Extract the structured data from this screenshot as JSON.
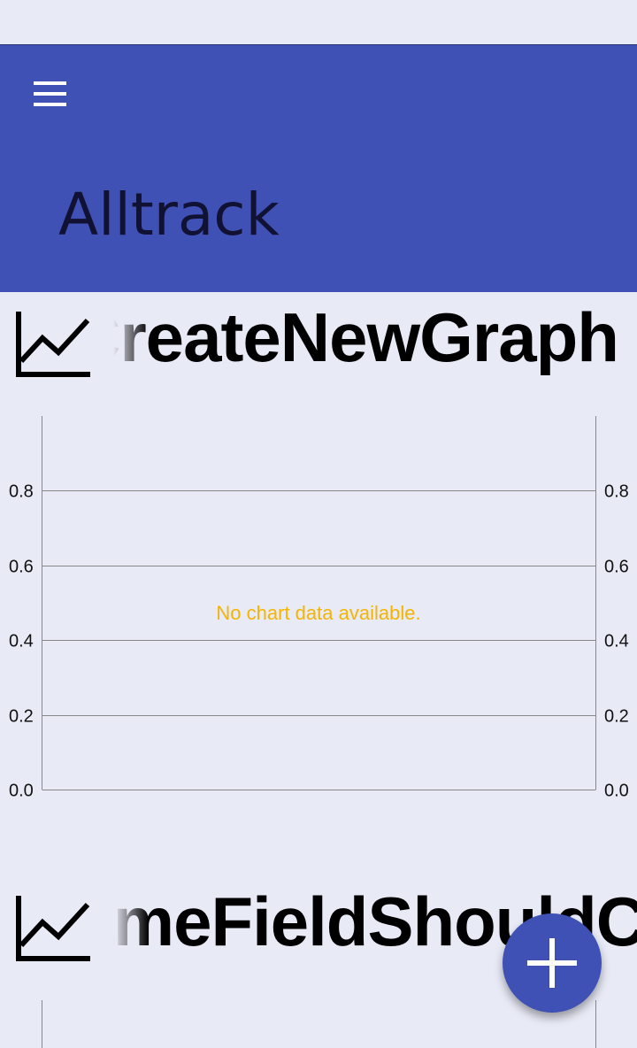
{
  "app_bar": {
    "title": "Alltrack",
    "menu_icon": "hamburger-menu-icon",
    "color": "#3f51b5"
  },
  "cards": [
    {
      "icon": "line-chart-icon",
      "title": "CreateNewGraph",
      "chart_data": {
        "type": "line",
        "series": [],
        "no_data_text": "No chart data available.",
        "no_data_color": "#f4b400",
        "ylim": [
          0,
          1
        ],
        "y_ticks": [
          "0.0",
          "0.2",
          "0.4",
          "0.6",
          "0.8"
        ],
        "y_axis_left": true,
        "y_axis_right": true,
        "grid": true
      }
    },
    {
      "icon": "line-chart-icon",
      "title": "NameFieldShouldContain",
      "chart_data": {
        "type": "line",
        "series": []
      }
    }
  ],
  "fab": {
    "icon": "plus-icon",
    "color": "#3f51b5"
  }
}
